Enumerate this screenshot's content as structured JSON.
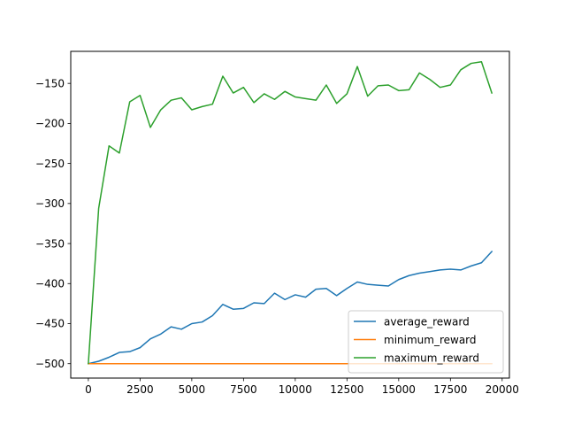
{
  "chart_data": {
    "type": "line",
    "title": "",
    "xlabel": "",
    "ylabel": "",
    "xlim": [
      -850,
      20350
    ],
    "ylim": [
      -518,
      -110
    ],
    "xticks": [
      0,
      2500,
      5000,
      7500,
      10000,
      12500,
      15000,
      17500,
      20000
    ],
    "xtick_labels": [
      "0",
      "2500",
      "5000",
      "7500",
      "10000",
      "12500",
      "15000",
      "17500",
      "20000"
    ],
    "yticks": [
      -500,
      -450,
      -400,
      -350,
      -300,
      -250,
      -200,
      -150
    ],
    "ytick_labels": [
      "−500",
      "−450",
      "−400",
      "−350",
      "−300",
      "−250",
      "−200",
      "−150"
    ],
    "grid": false,
    "legend_position": "lower-right",
    "x": [
      0,
      500,
      1000,
      1500,
      2000,
      2500,
      3000,
      3500,
      4000,
      4500,
      5000,
      5500,
      6000,
      6500,
      7000,
      7500,
      8000,
      8500,
      9000,
      9500,
      10000,
      10500,
      11000,
      11500,
      12000,
      12500,
      13000,
      13500,
      14000,
      14500,
      15000,
      15500,
      16000,
      16500,
      17000,
      17500,
      18000,
      18500,
      19000,
      19500
    ],
    "series": [
      {
        "name": "average_reward",
        "color": "#1f77b4",
        "values": [
          -500,
          -497,
          -492,
          -486,
          -485,
          -480,
          -469,
          -463,
          -454,
          -457,
          -450,
          -448,
          -440,
          -426,
          -432,
          -431,
          -424,
          -425,
          -412,
          -420,
          -414,
          -417,
          -407,
          -406,
          -415,
          -406,
          -398,
          -401,
          -402,
          -403,
          -395,
          -390,
          -387,
          -385,
          -383,
          -382,
          -383,
          -378,
          -374,
          -360
        ]
      },
      {
        "name": "minimum_reward",
        "color": "#ff7f0e",
        "values": [
          -500,
          -500,
          -500,
          -500,
          -500,
          -500,
          -500,
          -500,
          -500,
          -500,
          -500,
          -500,
          -500,
          -500,
          -500,
          -500,
          -500,
          -500,
          -500,
          -500,
          -500,
          -500,
          -500,
          -500,
          -500,
          -500,
          -500,
          -500,
          -500,
          -500,
          -500,
          -500,
          -500,
          -500,
          -500,
          -500,
          -500,
          -500,
          -500,
          -500
        ]
      },
      {
        "name": "maximum_reward",
        "color": "#2ca02c",
        "values": [
          -500,
          -306,
          -228,
          -237,
          -173,
          -165,
          -205,
          -183,
          -171,
          -168,
          -183,
          -179,
          -176,
          -141,
          -162,
          -155,
          -174,
          -163,
          -170,
          -160,
          -167,
          -169,
          -171,
          -152,
          -175,
          -163,
          -129,
          -166,
          -153,
          -152,
          -159,
          -158,
          -137,
          -145,
          -155,
          -152,
          -133,
          -125,
          -123,
          -162
        ]
      }
    ]
  }
}
